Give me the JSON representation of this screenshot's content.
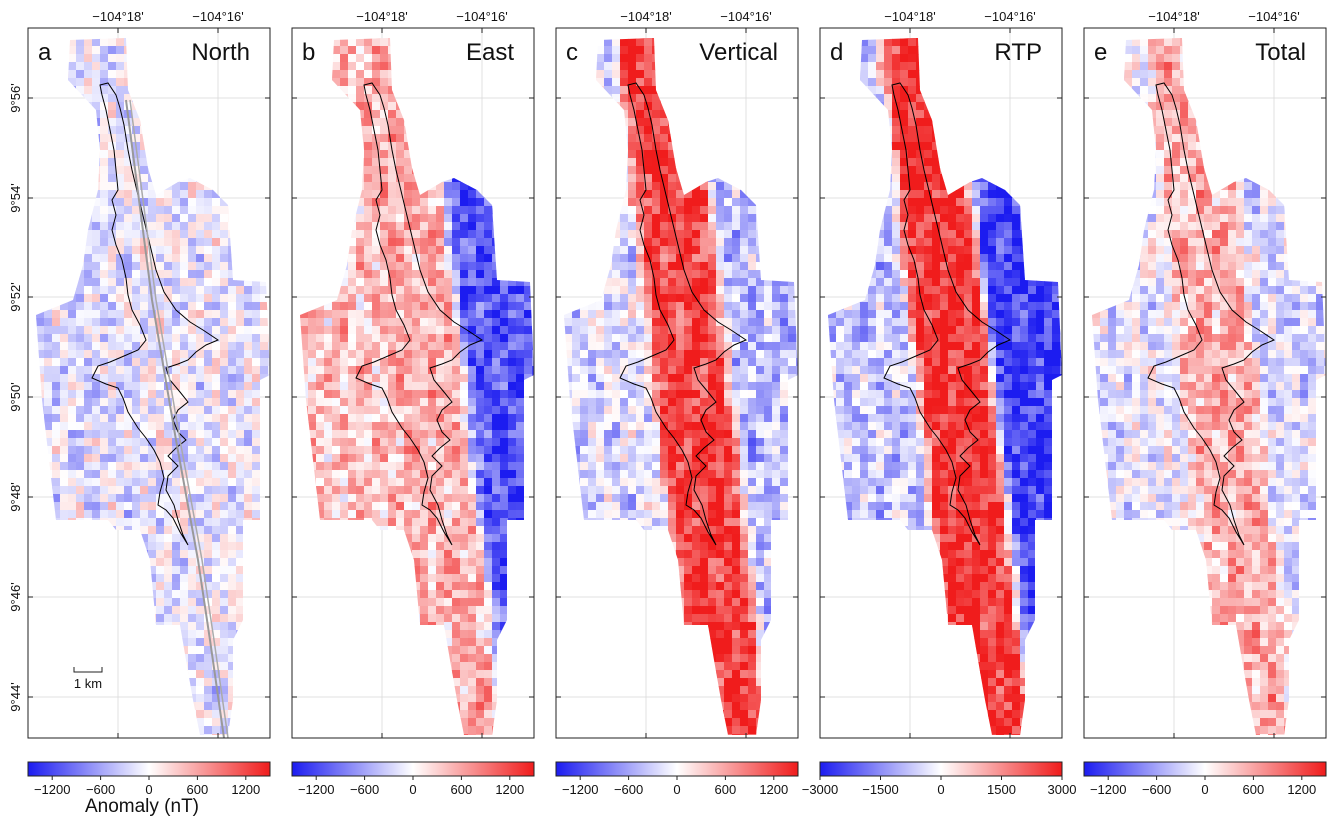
{
  "figure": {
    "lon_ticks": [
      "−104°18'",
      "−104°16'"
    ],
    "lat_ticks": [
      "9°56'",
      "9°54'",
      "9°52'",
      "9°50'",
      "9°48'",
      "9°46'",
      "9°44'"
    ],
    "scale_bar_label": "1 km",
    "colorbar_title": "Anomaly (nT)"
  },
  "chart_data": [
    {
      "type": "heatmap",
      "letter": "a",
      "title": "North",
      "colorbar": {
        "min": -1500,
        "max": 1500,
        "ticks": [
          "−1200",
          "−600",
          "0",
          "600",
          "1200"
        ],
        "colors": [
          "#1c1cf0",
          "#ffffff",
          "#f01c1c"
        ]
      },
      "pattern": "weak mixed, mostly slightly negative"
    },
    {
      "type": "heatmap",
      "letter": "b",
      "title": "East",
      "colorbar": {
        "min": -1500,
        "max": 1500,
        "ticks": [
          "−1200",
          "−600",
          "0",
          "600",
          "1200"
        ],
        "colors": [
          "#1c1cf0",
          "#ffffff",
          "#f01c1c"
        ]
      },
      "pattern": "positive stripe west of axis, strong negative east of axis"
    },
    {
      "type": "heatmap",
      "letter": "c",
      "title": "Vertical",
      "colorbar": {
        "min": -1500,
        "max": 1500,
        "ticks": [
          "−1200",
          "−600",
          "0",
          "600",
          "1200"
        ],
        "colors": [
          "#1c1cf0",
          "#ffffff",
          "#f01c1c"
        ]
      },
      "pattern": "strong positive along axis, negative flanks"
    },
    {
      "type": "heatmap",
      "letter": "d",
      "title": "RTP",
      "colorbar": {
        "min": -3000,
        "max": 3000,
        "ticks": [
          "−3000",
          "−1500",
          "0",
          "1500",
          "3000"
        ],
        "colors": [
          "#1c1cf0",
          "#ffffff",
          "#f01c1c"
        ]
      },
      "pattern": "strong positive along axis, strong negative on eastern flank"
    },
    {
      "type": "heatmap",
      "letter": "e",
      "title": "Total",
      "colorbar": {
        "min": -1500,
        "max": 1500,
        "ticks": [
          "−1200",
          "−600",
          "0",
          "600",
          "1200"
        ],
        "colors": [
          "#1c1cf0",
          "#ffffff",
          "#f01c1c"
        ]
      },
      "pattern": "moderate positive along axis, mixed flanks"
    }
  ]
}
